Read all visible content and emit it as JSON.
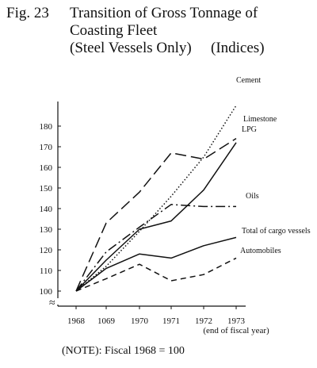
{
  "figure": {
    "label": "Fig. 23",
    "title_line1": "Transition of Gross Tonnage of",
    "title_line2": "Coasting Fleet",
    "title_line3": "(Steel Vessels Only)",
    "title_suffix": "(Indices)",
    "note": "(NOTE): Fiscal 1968 = 100",
    "axis_break_symbol": "≈"
  },
  "chart_data": {
    "type": "line",
    "title": "Transition of Gross Tonnage of Coasting Fleet (Steel Vessels Only) (Indices)",
    "xlabel": "",
    "ylabel": "",
    "categories": [
      "1968",
      "1069",
      "1970",
      "1971",
      "1972",
      "1973"
    ],
    "x_suffix_label": "(end of fiscal year)",
    "yticks": [
      100,
      110,
      120,
      130,
      140,
      150,
      160,
      170,
      180
    ],
    "ylim": [
      100,
      185
    ],
    "grid": false,
    "legend": "inline labels at line ends",
    "series": [
      {
        "name": "Cement",
        "values": [
          100,
          112,
          129,
          146,
          165,
          190
        ],
        "dash": "dotted"
      },
      {
        "name": "Limestone",
        "values": [
          100,
          133,
          148,
          167,
          164,
          174
        ],
        "dash": "long-dash"
      },
      {
        "name": "LPG",
        "values": [
          100,
          115,
          130,
          134,
          149,
          172
        ],
        "dash": "solid"
      },
      {
        "name": "Oils",
        "values": [
          100,
          119,
          131,
          142,
          141,
          141
        ],
        "dash": "dash-dot"
      },
      {
        "name": "Total of cargo vessels",
        "values": [
          100,
          111,
          118,
          116,
          122,
          126
        ],
        "dash": "solid"
      },
      {
        "name": "Automobiles",
        "values": [
          100,
          106,
          113,
          105,
          108,
          116
        ],
        "dash": "dashed"
      }
    ]
  }
}
